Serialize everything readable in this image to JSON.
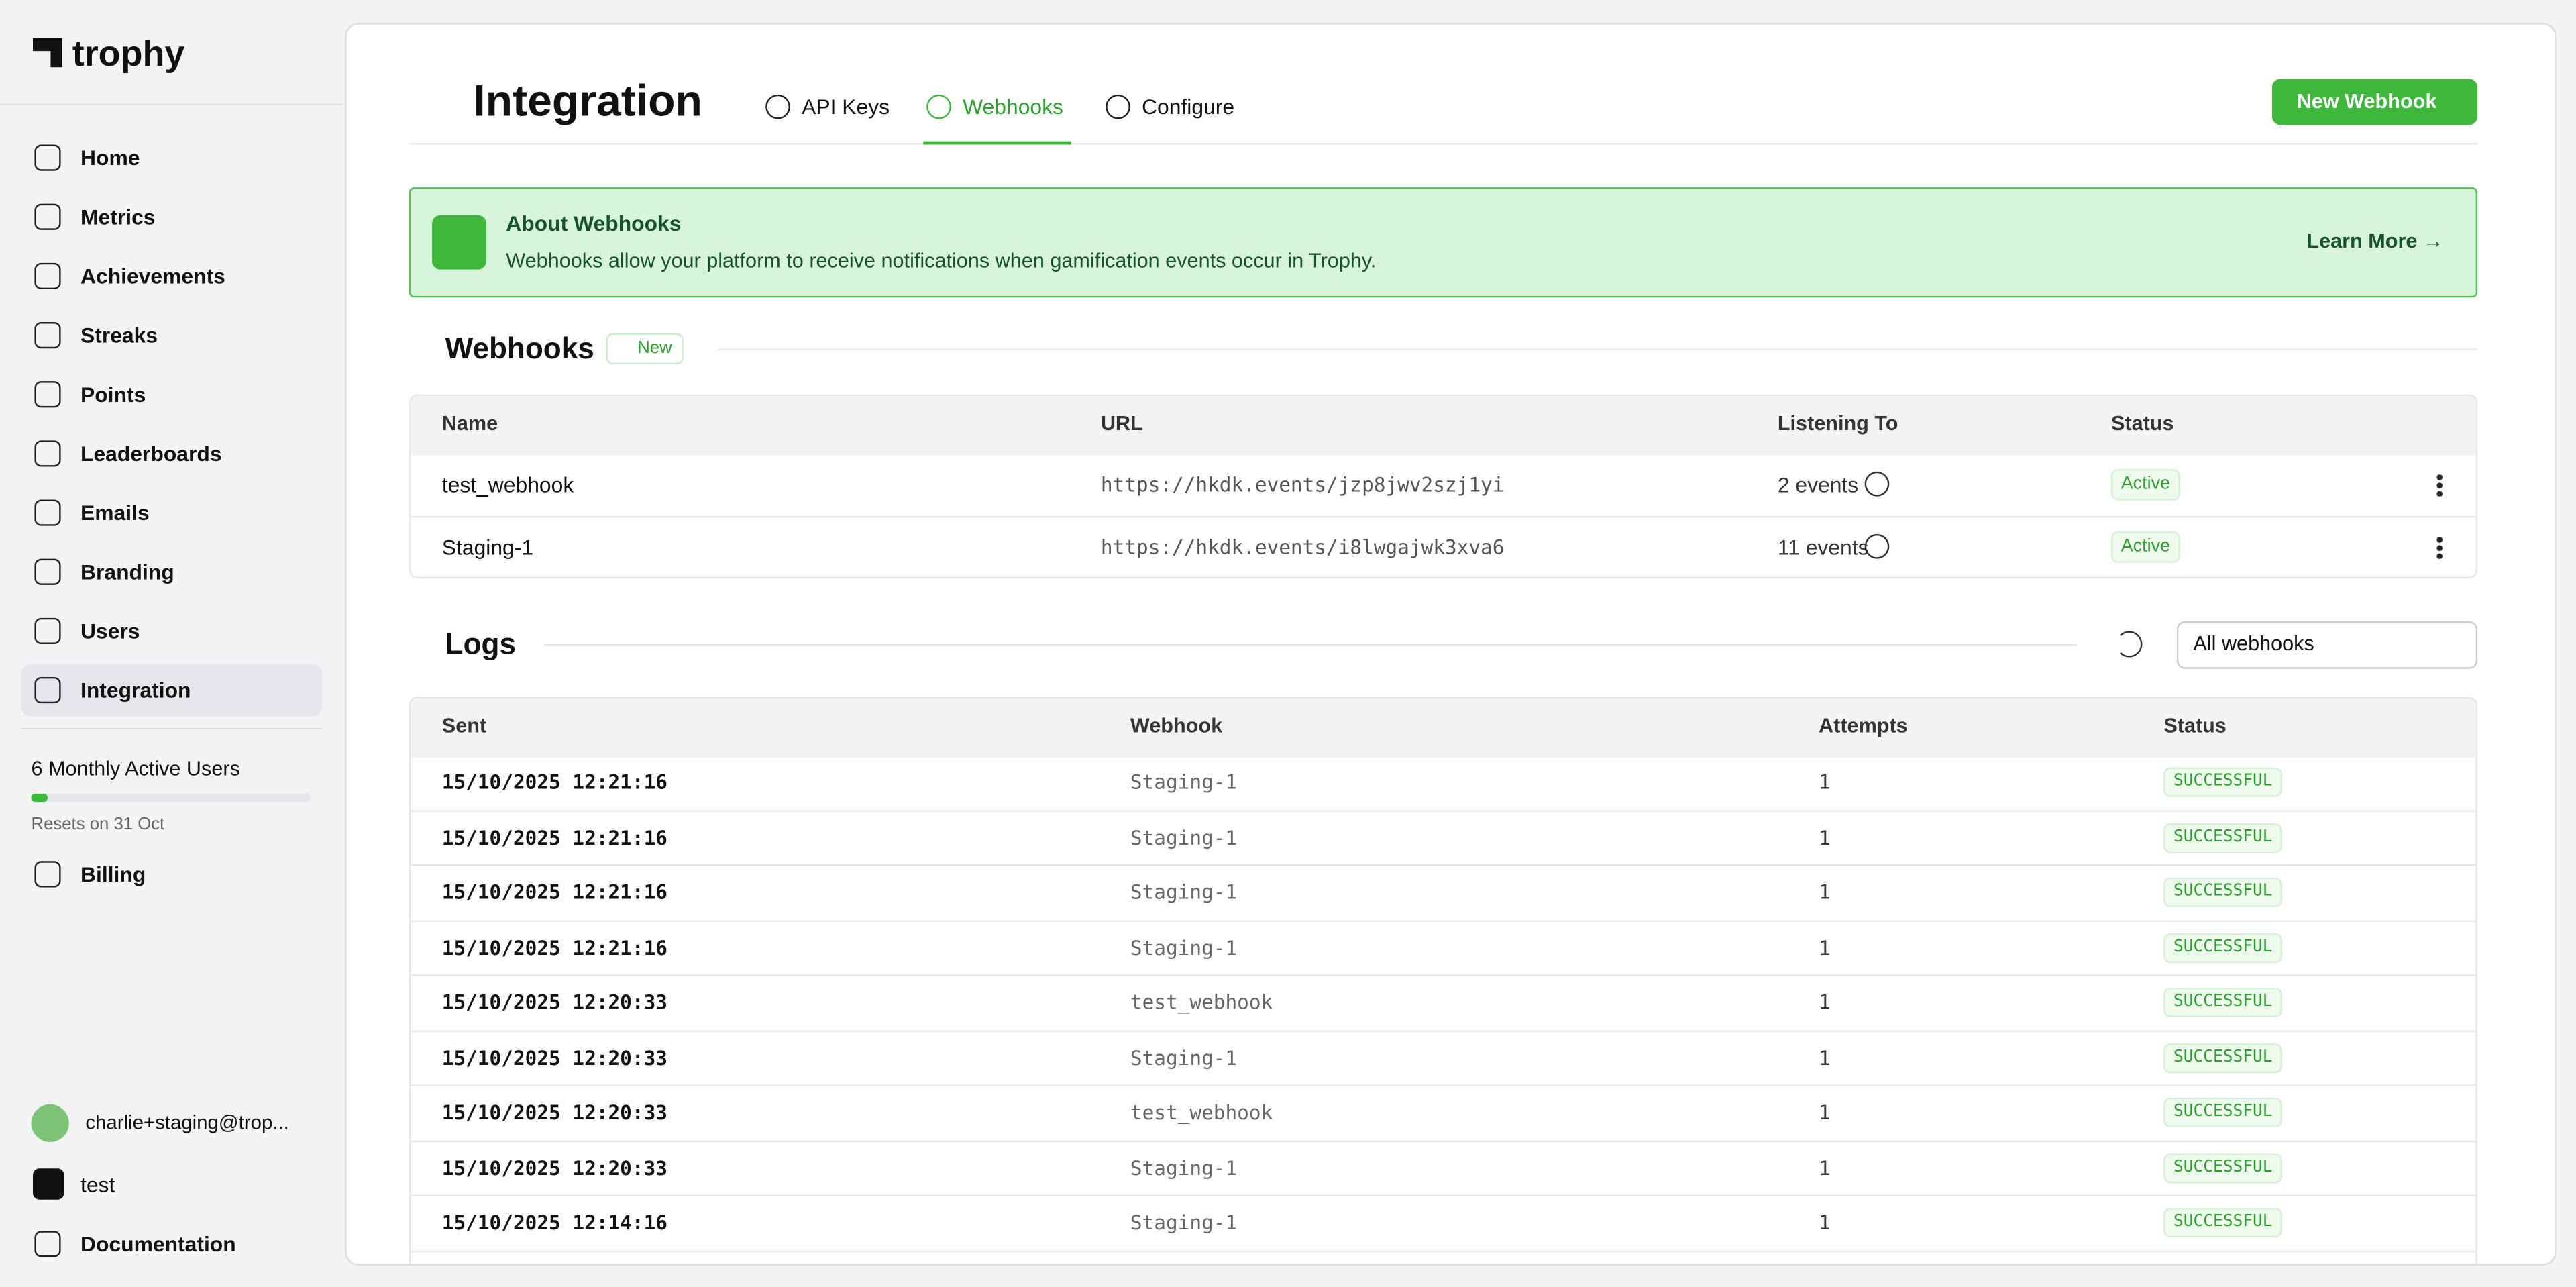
{
  "sidebar": {
    "brand": "trophy",
    "nav": [
      "Home",
      "Metrics",
      "Achievements",
      "Streaks",
      "Points",
      "Leaderboards",
      "Emails",
      "Branding",
      "Users",
      "Integration"
    ],
    "usage": "6 Monthly Active Users",
    "resets": "Resets on 31 Oct",
    "billing": "Billing",
    "user": "charlie+staging@trop...",
    "org": "test",
    "docs": "Documentation"
  },
  "header": {
    "title": "Integration",
    "tabs": [
      "API Keys",
      "Webhooks",
      "Configure"
    ],
    "button": "New Webhook"
  },
  "banner": {
    "title": "About Webhooks",
    "text": "Webhooks allow your platform to receive notifications when gamification events occur in Trophy.",
    "link": "Learn More →"
  },
  "webhooks": {
    "title": "Webhooks",
    "badge": "New",
    "columns": [
      "Name",
      "URL",
      "Listening To",
      "Status"
    ],
    "rows": [
      [
        "test_webhook",
        "https://hkdk.events/jzp8jwv2szj1yi",
        "2 events",
        "Active"
      ],
      [
        "Staging-1",
        "https://hkdk.events/i8lwgajwk3xva6",
        "11 events",
        "Active"
      ]
    ]
  },
  "logs": {
    "title": "Logs",
    "filter": "All webhooks",
    "columns": [
      "Sent",
      "Webhook",
      "Attempts",
      "Status"
    ],
    "rows": [
      [
        "15/10/2025 12:21:16",
        "Staging-1",
        "1",
        "SUCCESSFUL"
      ],
      [
        "15/10/2025 12:21:16",
        "Staging-1",
        "1",
        "SUCCESSFUL"
      ],
      [
        "15/10/2025 12:21:16",
        "Staging-1",
        "1",
        "SUCCESSFUL"
      ],
      [
        "15/10/2025 12:21:16",
        "Staging-1",
        "1",
        "SUCCESSFUL"
      ],
      [
        "15/10/2025 12:20:33",
        "test_webhook",
        "1",
        "SUCCESSFUL"
      ],
      [
        "15/10/2025 12:20:33",
        "Staging-1",
        "1",
        "SUCCESSFUL"
      ],
      [
        "15/10/2025 12:20:33",
        "test_webhook",
        "1",
        "SUCCESSFUL"
      ],
      [
        "15/10/2025 12:20:33",
        "Staging-1",
        "1",
        "SUCCESSFUL"
      ],
      [
        "15/10/2025 12:14:16",
        "Staging-1",
        "1",
        "SUCCESSFUL"
      ]
    ]
  }
}
